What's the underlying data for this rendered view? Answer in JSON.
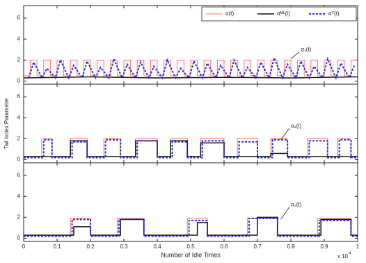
{
  "chart_data": [
    {
      "type": "line",
      "xlim": [
        0,
        1
      ],
      "ylim": [
        -0.3,
        7.2
      ],
      "yticks": [
        0,
        2,
        4,
        6
      ],
      "annotation": "α₁(t)",
      "legend": "upper right",
      "series": [
        {
          "name": "α(t)",
          "color": "#ff7070",
          "dash": "none",
          "width": 1,
          "x": [
            0,
            0.02,
            0.02,
            0.04,
            0.04,
            0.06,
            0.06,
            0.08,
            0.08,
            0.1,
            0.1,
            0.12,
            0.12,
            0.14,
            0.14,
            0.16,
            0.16,
            0.18,
            0.18,
            0.2,
            0.2,
            0.22,
            0.22,
            0.24,
            0.24,
            0.26,
            0.26,
            0.28,
            0.28,
            0.3,
            0.3,
            0.32,
            0.32,
            0.34,
            0.34,
            0.36,
            0.36,
            0.38,
            0.38,
            0.4,
            0.4,
            0.42,
            0.42,
            0.44,
            0.44,
            0.46,
            0.46,
            0.48,
            0.48,
            0.5,
            0.5,
            0.52,
            0.52,
            0.54,
            0.54,
            0.56,
            0.56,
            0.58,
            0.58,
            0.6,
            0.6,
            0.62,
            0.62,
            0.64,
            0.64,
            0.66,
            0.66,
            0.68,
            0.68,
            0.7,
            0.7,
            0.72,
            0.72,
            0.74,
            0.74,
            0.76,
            0.76,
            0.78,
            0.78,
            0.8,
            0.8,
            0.82,
            0.82,
            0.84,
            0.84,
            0.86,
            0.86,
            0.88,
            0.88,
            0.9,
            0.9,
            0.92,
            0.92,
            0.94,
            0.94,
            0.96,
            0.96,
            0.98,
            0.98,
            1
          ],
          "values": [
            0.5,
            0.5,
            2,
            2,
            0.5,
            0.5,
            2,
            2,
            0.5,
            0.5,
            2,
            2,
            0.5,
            0.5,
            2,
            2,
            0.5,
            0.5,
            2,
            2,
            0.5,
            0.5,
            2,
            2,
            0.5,
            0.5,
            2,
            2,
            0.5,
            0.5,
            2,
            2,
            0.5,
            0.5,
            2,
            2,
            0.5,
            0.5,
            2,
            2,
            0.5,
            0.5,
            2,
            2,
            0.5,
            0.5,
            2,
            2,
            0.5,
            0.5,
            2,
            2,
            0.5,
            0.5,
            2,
            2,
            0.5,
            0.5,
            2,
            2,
            0.5,
            0.5,
            2,
            2,
            0.5,
            0.5,
            2,
            2,
            0.5,
            0.5,
            2,
            2,
            0.5,
            0.5,
            2,
            2,
            0.5,
            0.5,
            2,
            2,
            0.5,
            0.5,
            2,
            2,
            0.5,
            0.5,
            2,
            2,
            0.5,
            0.5,
            2,
            2,
            0.5,
            0.5,
            2,
            2,
            0.5,
            0.5,
            2,
            2
          ]
        },
        {
          "name": "αᴹᴸ(t)",
          "color": "#111111",
          "dash": "none",
          "width": 1.5,
          "x": [
            0,
            0.2,
            0.4,
            0.6,
            0.8,
            1
          ],
          "values": [
            0.3,
            0.4,
            0.3,
            0.35,
            0.3,
            0.4
          ]
        },
        {
          "name": "αᵀ(t)",
          "color": "#2a2ad0",
          "dash": "3 2",
          "width": 2,
          "x": [
            0.015,
            0.03,
            0.055,
            0.07,
            0.095,
            0.11,
            0.135,
            0.15,
            0.175,
            0.19,
            0.215,
            0.23,
            0.255,
            0.27,
            0.295,
            0.31,
            0.335,
            0.35,
            0.375,
            0.39,
            0.415,
            0.43,
            0.455,
            0.47,
            0.495,
            0.51,
            0.535,
            0.55,
            0.575,
            0.59,
            0.615,
            0.63,
            0.655,
            0.67,
            0.695,
            0.71,
            0.735,
            0.75,
            0.775,
            0.79,
            0.815,
            0.83,
            0.855,
            0.87,
            0.895,
            0.91,
            0.935,
            0.95,
            0.975,
            0.99
          ],
          "values": [
            0.3,
            1.8,
            0.3,
            1.2,
            0.3,
            2.0,
            0.3,
            1.5,
            0.3,
            1.9,
            0.3,
            1.3,
            0.3,
            2.1,
            0.3,
            1.6,
            0.3,
            1.8,
            0.3,
            1.4,
            0.3,
            2.0,
            0.3,
            1.2,
            0.3,
            1.9,
            0.3,
            1.7,
            0.3,
            1.5,
            0.3,
            2.0,
            0.3,
            1.3,
            0.3,
            1.8,
            0.3,
            2.2,
            0.3,
            1.6,
            0.3,
            1.9,
            0.3,
            1.4,
            0.3,
            2.1,
            0.3,
            1.7,
            0.3,
            1.5
          ]
        }
      ]
    },
    {
      "type": "line",
      "xlim": [
        0,
        1
      ],
      "ylim": [
        -0.3,
        7.2
      ],
      "yticks": [
        0,
        2,
        4,
        6
      ],
      "annotation": "α₂(t)",
      "ylabel": "Tail Index Parameter",
      "series": [
        {
          "color": "#ff7070",
          "dash": "none",
          "width": 1,
          "x": [
            0,
            0.054,
            0.054,
            0.085,
            0.085,
            0.14,
            0.14,
            0.19,
            0.19,
            0.24,
            0.24,
            0.29,
            0.29,
            0.335,
            0.335,
            0.4,
            0.4,
            0.44,
            0.44,
            0.49,
            0.49,
            0.53,
            0.53,
            0.6,
            0.6,
            0.64,
            0.64,
            0.7,
            0.7,
            0.74,
            0.74,
            0.79,
            0.79,
            0.85,
            0.85,
            0.91,
            0.91,
            0.94,
            0.94,
            0.98,
            0.98,
            1
          ],
          "values": [
            0.3,
            0.3,
            2,
            2,
            0.3,
            0.3,
            2,
            2,
            0.3,
            0.3,
            2,
            2,
            0.3,
            0.3,
            2,
            2,
            0.3,
            0.3,
            2,
            2,
            0.3,
            0.3,
            2,
            2,
            0.3,
            0.3,
            2,
            2,
            0.3,
            0.3,
            2,
            2,
            0.3,
            0.3,
            2,
            2,
            0.3,
            0.3,
            2,
            2,
            0.3,
            0.3
          ]
        },
        {
          "color": "#111111",
          "dash": "none",
          "width": 1.5,
          "x": [
            0,
            0.14,
            0.14,
            0.19,
            0.19,
            0.335,
            0.335,
            0.4,
            0.4,
            0.44,
            0.44,
            0.49,
            0.49,
            0.53,
            0.53,
            0.6,
            0.6,
            0.74,
            0.74,
            0.79,
            0.79,
            1
          ],
          "values": [
            0.3,
            0.3,
            1.8,
            1.8,
            0.3,
            0.3,
            1.8,
            1.8,
            0.3,
            0.3,
            1.8,
            1.8,
            0.3,
            0.3,
            1.6,
            1.6,
            0.3,
            0.3,
            0.6,
            0.6,
            0.3,
            0.3
          ]
        },
        {
          "color": "#2a2ad0",
          "dash": "3 2",
          "width": 2,
          "x": [
            0,
            0.06,
            0.06,
            0.085,
            0.085,
            0.145,
            0.145,
            0.19,
            0.19,
            0.245,
            0.245,
            0.29,
            0.29,
            0.34,
            0.34,
            0.4,
            0.4,
            0.445,
            0.445,
            0.49,
            0.49,
            0.535,
            0.535,
            0.6,
            0.6,
            0.645,
            0.645,
            0.7,
            0.7,
            0.745,
            0.745,
            0.79,
            0.79,
            0.855,
            0.855,
            0.91,
            0.91,
            0.945,
            0.945,
            0.98,
            0.98,
            1
          ],
          "values": [
            0.2,
            0.2,
            1.9,
            1.9,
            0.2,
            0.2,
            1.7,
            1.7,
            0.2,
            0.2,
            1.9,
            1.9,
            0.2,
            0.2,
            1.8,
            1.8,
            0.2,
            0.2,
            1.7,
            1.7,
            0.2,
            0.2,
            1.8,
            1.8,
            0.2,
            0.2,
            1.7,
            1.7,
            0.2,
            0.2,
            1.9,
            1.9,
            0.2,
            0.2,
            1.8,
            1.8,
            0.2,
            0.2,
            1.9,
            1.9,
            0.2,
            0.2
          ]
        }
      ]
    },
    {
      "type": "line",
      "xlim": [
        0,
        1
      ],
      "ylim": [
        -0.3,
        7.2
      ],
      "yticks": [
        0,
        2,
        4,
        6
      ],
      "annotation": "α₃(t)",
      "xticks": [
        0,
        0.1,
        0.2,
        0.3,
        0.4,
        0.5,
        0.6,
        0.7,
        0.8,
        0.9,
        1
      ],
      "xlabel": "Number of Idle Times",
      "x_multiplier": "x 10",
      "x_multiplier_exp": "4",
      "series": [
        {
          "color": "#ff7070",
          "dash": "none",
          "width": 1,
          "x": [
            0,
            0.14,
            0.14,
            0.2,
            0.2,
            0.28,
            0.28,
            0.36,
            0.36,
            0.49,
            0.49,
            0.55,
            0.55,
            0.67,
            0.67,
            0.76,
            0.76,
            0.88,
            0.88,
            0.98,
            0.98,
            1
          ],
          "values": [
            0.3,
            0.3,
            1.9,
            1.9,
            0.3,
            0.3,
            1.9,
            1.9,
            0.3,
            0.3,
            1.9,
            1.9,
            0.3,
            0.3,
            1.9,
            1.9,
            0.3,
            0.3,
            1.9,
            1.9,
            0.3,
            0.3
          ]
        },
        {
          "color": "#111111",
          "dash": "none",
          "width": 1.5,
          "x": [
            0,
            0.15,
            0.15,
            0.2,
            0.2,
            0.29,
            0.29,
            0.36,
            0.36,
            0.52,
            0.52,
            0.55,
            0.55,
            0.7,
            0.7,
            0.76,
            0.76,
            0.89,
            0.89,
            0.98,
            0.98,
            1
          ],
          "values": [
            0.3,
            0.3,
            1.1,
            1.1,
            0.3,
            0.3,
            1.8,
            1.8,
            0.3,
            0.3,
            1.5,
            1.5,
            0.3,
            0.3,
            2,
            2,
            0.3,
            0.3,
            1.8,
            1.8,
            0.3,
            0.3
          ]
        },
        {
          "color": "#2a2ad0",
          "dash": "3 2",
          "width": 2,
          "x": [
            0,
            0.145,
            0.145,
            0.2,
            0.2,
            0.285,
            0.285,
            0.36,
            0.36,
            0.495,
            0.495,
            0.55,
            0.55,
            0.675,
            0.675,
            0.76,
            0.76,
            0.885,
            0.885,
            0.98,
            0.98,
            1
          ],
          "values": [
            0.2,
            0.2,
            1.8,
            1.8,
            0.2,
            0.2,
            1.8,
            1.8,
            0.2,
            0.2,
            1.7,
            1.7,
            0.2,
            0.2,
            1.9,
            1.9,
            0.2,
            0.2,
            1.7,
            1.7,
            0.2,
            0.2
          ]
        }
      ]
    }
  ]
}
